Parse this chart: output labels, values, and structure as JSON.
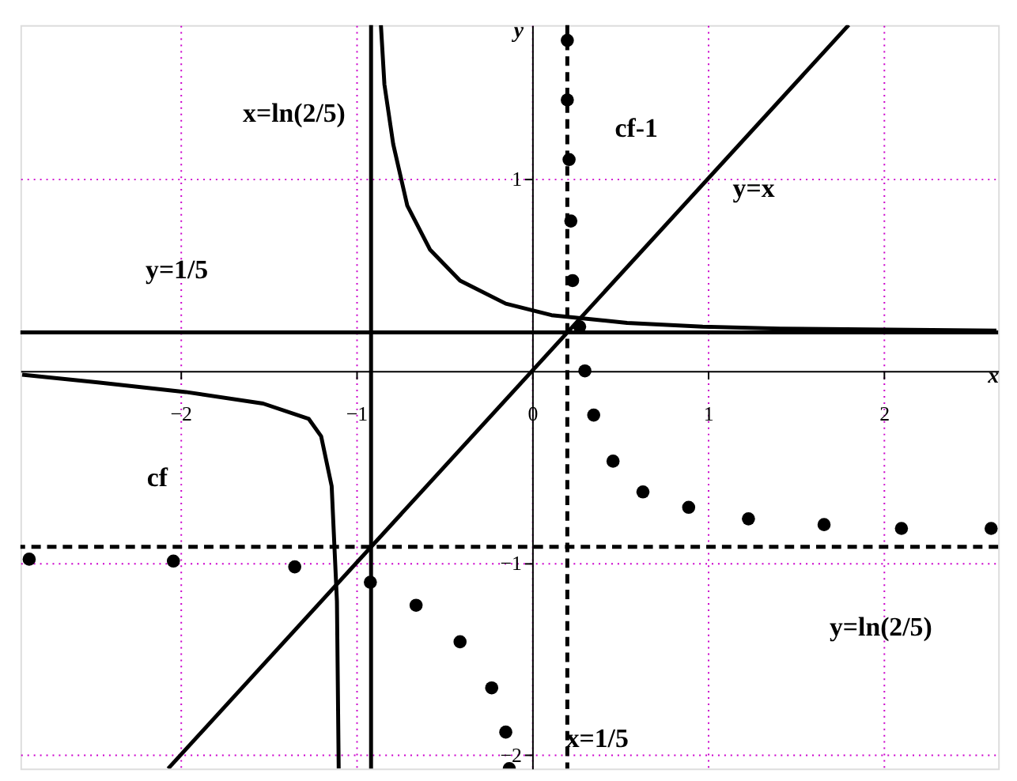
{
  "chart_data": {
    "type": "line",
    "xlabel": "x",
    "ylabel": "y",
    "xlim": [
      -2.91,
      2.65
    ],
    "ylim": [
      -2.07,
      1.8
    ],
    "xticks": [
      -2,
      -1,
      0,
      1,
      2
    ],
    "yticks": [
      -2,
      -1,
      1
    ],
    "grid": true,
    "series": [
      {
        "color": "#000000",
        "line_style": "solid",
        "x": [
          -2.9,
          -2.47,
          -1.97,
          -1.53,
          -1.27,
          -1.2,
          -1.14,
          -1.11,
          -1.1
        ],
        "values": [
          -0.02,
          -0.06,
          -0.11,
          -0.17,
          -0.25,
          -0.34,
          -0.6,
          -1.2,
          -2.07
        ]
      },
      {
        "color": "#000000",
        "line_style": "solid",
        "x": [
          -0.86,
          -0.84,
          -0.79,
          -0.71,
          -0.58,
          -0.41,
          -0.15,
          0.11,
          0.54,
          0.97,
          1.41,
          2.64
        ],
        "values": [
          1.8,
          1.49,
          1.18,
          0.86,
          0.63,
          0.47,
          0.35,
          0.29,
          0.25,
          0.23,
          0.22,
          0.21
        ]
      },
      {
        "type": "scatter",
        "color": "#000000",
        "marker": "circle",
        "x": [
          0.2,
          0.2,
          0.21,
          0.22,
          0.23,
          0.27,
          0.3,
          0.35,
          0.46,
          0.63,
          0.89,
          1.23,
          1.66,
          2.1,
          2.61
        ],
        "values": [
          1.72,
          1.41,
          1.1,
          0.78,
          0.47,
          0.23,
          0,
          -0.23,
          -0.47,
          -0.63,
          -0.71,
          -0.77,
          -0.8,
          -0.82,
          -0.82
        ]
      },
      {
        "type": "scatter",
        "color": "#000000",
        "marker": "circle",
        "x": [
          -2.86,
          -2.04,
          -1.35,
          -0.92,
          -0.66,
          -0.41,
          -0.23,
          -0.15,
          -0.13
        ],
        "values": [
          -0.98,
          -0.99,
          -1.02,
          -1.1,
          -1.22,
          -1.41,
          -1.65,
          -1.88,
          -2.07
        ]
      },
      {
        "color": "#000000",
        "line_style": "solid",
        "x": [
          -2.07,
          1.8
        ],
        "values": [
          -2.07,
          1.8
        ]
      }
    ],
    "ref_lines": [
      {
        "axis": "x",
        "value": -0.916,
        "color": "#000000",
        "line_style": "solid"
      },
      {
        "axis": "y",
        "value": 0.2,
        "color": "#000000",
        "line_style": "solid"
      },
      {
        "axis": "x",
        "value": 0.2,
        "color": "#000000",
        "line_style": "dashed"
      },
      {
        "axis": "y",
        "value": -0.916,
        "color": "#000000",
        "line_style": "dashed"
      }
    ],
    "annotations": [
      "x=ln(2/5)",
      "cf-1",
      "y=x",
      "y=1/5",
      "cf",
      "y=ln(2/5)",
      "x=1/5"
    ]
  }
}
